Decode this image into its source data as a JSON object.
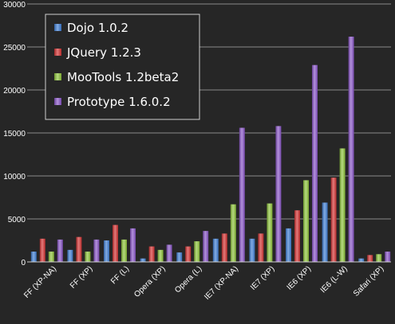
{
  "chart_data": {
    "type": "bar",
    "title": "",
    "xlabel": "",
    "ylabel": "",
    "ylim": [
      0,
      30000
    ],
    "yticks": [
      0,
      5000,
      10000,
      15000,
      20000,
      25000,
      30000
    ],
    "ytick_labels": [
      "0",
      "5000",
      "10000",
      "15000",
      "20000",
      "25000",
      "30000"
    ],
    "grid": true,
    "legend_position": "top-left",
    "background": "#262626",
    "categories": [
      "FF (XP-NA)",
      "FF (XP)",
      "FF (L)",
      "Opera (XP)",
      "Opera (L)",
      "IE7 (XP-NA)",
      "IE7 (XP)",
      "IE6 (XP)",
      "IE6 (L-W)",
      "Safari (XP)"
    ],
    "series": [
      {
        "name": "Dojo 1.0.2",
        "color": "#3f7fd6",
        "values": [
          1200,
          1400,
          2500,
          400,
          1100,
          2700,
          2700,
          3900,
          6900,
          400
        ]
      },
      {
        "name": "JQuery 1.2.3",
        "color": "#d63232",
        "values": [
          2700,
          2900,
          4300,
          1800,
          1800,
          3300,
          3300,
          6000,
          9800,
          800
        ]
      },
      {
        "name": "MooTools 1.2beta2",
        "color": "#8fc63a",
        "values": [
          1200,
          1200,
          2600,
          1400,
          2400,
          6700,
          6800,
          9500,
          13200,
          900
        ]
      },
      {
        "name": "Prototype 1.6.0.2",
        "color": "#8a55c9",
        "values": [
          2600,
          2600,
          3900,
          2000,
          3600,
          15600,
          15800,
          22900,
          26200,
          1200
        ]
      }
    ]
  }
}
